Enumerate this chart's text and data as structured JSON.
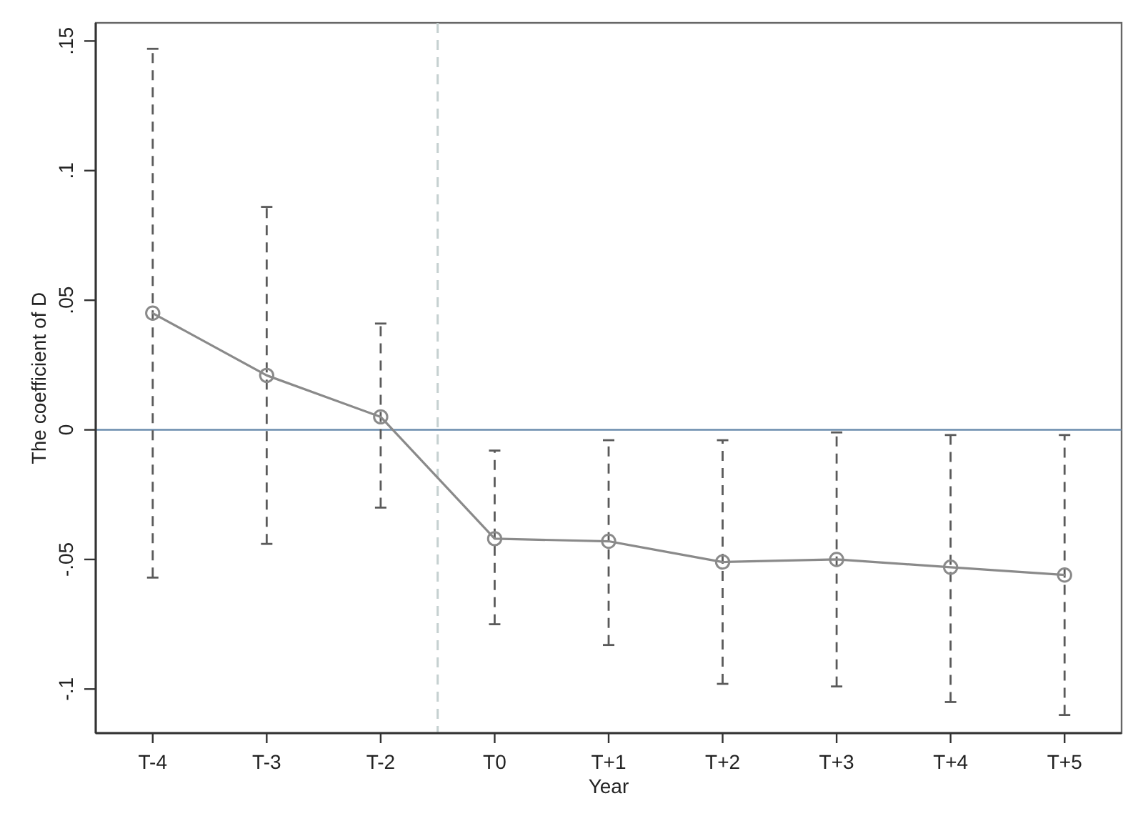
{
  "chart_data": {
    "type": "line",
    "xlabel": "Year",
    "ylabel": "The coefficient of D",
    "categories": [
      "T-4",
      "T-3",
      "T-2",
      "T0",
      "T+1",
      "T+2",
      "T+3",
      "T+4",
      "T+5"
    ],
    "ylim": [
      -0.117,
      0.157
    ],
    "yticks": [
      {
        "value": -0.1,
        "label": "-.1"
      },
      {
        "value": -0.05,
        "label": "-.05"
      },
      0,
      {
        "value": 0.05,
        "label": ".05"
      },
      {
        "value": 0.1,
        "label": ".1"
      },
      {
        "value": 0.15,
        "label": ".15"
      }
    ],
    "series": [
      {
        "color": "#8a8a8a",
        "values": [
          0.045,
          0.021,
          0.005,
          -0.042,
          -0.043,
          -0.051,
          -0.05,
          -0.053,
          -0.056
        ],
        "errors": [
          [
            -0.057,
            0.147
          ],
          [
            -0.044,
            0.086
          ],
          [
            -0.03,
            0.041
          ],
          [
            -0.075,
            -0.008
          ],
          [
            -0.083,
            -0.004
          ],
          [
            -0.098,
            -0.004
          ],
          [
            -0.099,
            -0.001
          ],
          [
            -0.105,
            -0.002
          ],
          [
            -0.11,
            -0.002
          ]
        ]
      }
    ],
    "marker": "circle",
    "line_style": "solid",
    "ref_lines": [
      {
        "axis": "y",
        "value": 0,
        "color": "#6b8cae",
        "line_style": "solid"
      }
    ]
  }
}
